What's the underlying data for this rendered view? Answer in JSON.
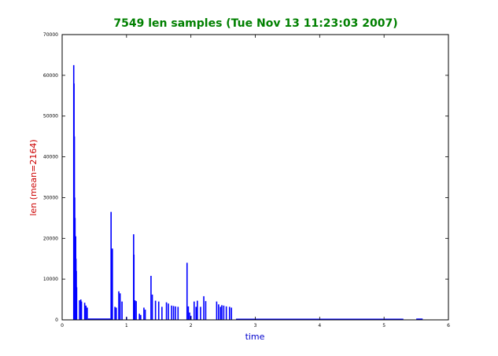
{
  "chart_data": {
    "type": "line",
    "title": "7549 len samples (Tue Nov 13 11:23:03 2007)",
    "xlabel": "time",
    "ylabel": "len (mean=2164)",
    "xlim": [
      0,
      6
    ],
    "ylim": [
      0,
      70000
    ],
    "x_ticks": [
      0,
      1,
      2,
      3,
      4,
      5,
      6
    ],
    "y_ticks": [
      0,
      10000,
      20000,
      30000,
      40000,
      50000,
      60000,
      70000
    ],
    "grid": false,
    "colors": {
      "title": "#008000",
      "xlabel": "#0000cc",
      "ylabel": "#cc0000",
      "series": "#0000ff"
    },
    "series": [
      {
        "spikes": [
          [
            0.18,
            62500
          ],
          [
            0.185,
            58000
          ],
          [
            0.19,
            45000
          ],
          [
            0.195,
            30000
          ],
          [
            0.2,
            25000
          ],
          [
            0.21,
            20500
          ],
          [
            0.215,
            15000
          ],
          [
            0.22,
            12000
          ],
          [
            0.225,
            8000
          ],
          [
            0.27,
            4800
          ],
          [
            0.29,
            5000
          ],
          [
            0.3,
            4500
          ],
          [
            0.35,
            4200
          ],
          [
            0.37,
            3500
          ],
          [
            0.39,
            3000
          ],
          [
            0.76,
            26500
          ],
          [
            0.765,
            17000
          ],
          [
            0.78,
            17500
          ],
          [
            0.82,
            3200
          ],
          [
            0.84,
            3000
          ],
          [
            0.88,
            7000
          ],
          [
            0.9,
            6500
          ],
          [
            0.93,
            4500
          ],
          [
            1.0,
            700
          ],
          [
            1.11,
            21000
          ],
          [
            1.115,
            16000
          ],
          [
            1.13,
            4800
          ],
          [
            1.15,
            4600
          ],
          [
            1.2,
            1500
          ],
          [
            1.22,
            1200
          ],
          [
            1.27,
            3000
          ],
          [
            1.29,
            2500
          ],
          [
            1.38,
            10800
          ],
          [
            1.4,
            6200
          ],
          [
            1.45,
            4700
          ],
          [
            1.5,
            4500
          ],
          [
            1.55,
            3200
          ],
          [
            1.62,
            4300
          ],
          [
            1.65,
            4000
          ],
          [
            1.7,
            3500
          ],
          [
            1.73,
            3400
          ],
          [
            1.76,
            3300
          ],
          [
            1.8,
            3200
          ],
          [
            1.94,
            14000
          ],
          [
            1.96,
            3300
          ],
          [
            1.98,
            1800
          ],
          [
            2.0,
            1000
          ],
          [
            2.05,
            4500
          ],
          [
            2.08,
            3200
          ],
          [
            2.1,
            4700
          ],
          [
            2.15,
            3200
          ],
          [
            2.2,
            5800
          ],
          [
            2.23,
            4600
          ],
          [
            2.4,
            4500
          ],
          [
            2.43,
            3800
          ],
          [
            2.46,
            3200
          ],
          [
            2.48,
            3600
          ],
          [
            2.51,
            3500
          ],
          [
            2.55,
            3300
          ],
          [
            2.6,
            3200
          ],
          [
            2.63,
            3000
          ],
          [
            2.75,
            150
          ]
        ],
        "baseline": [
          [
            0.4,
            0.75,
            200
          ],
          [
            2.7,
            5.3,
            150
          ],
          [
            5.5,
            5.6,
            180
          ]
        ]
      }
    ]
  }
}
